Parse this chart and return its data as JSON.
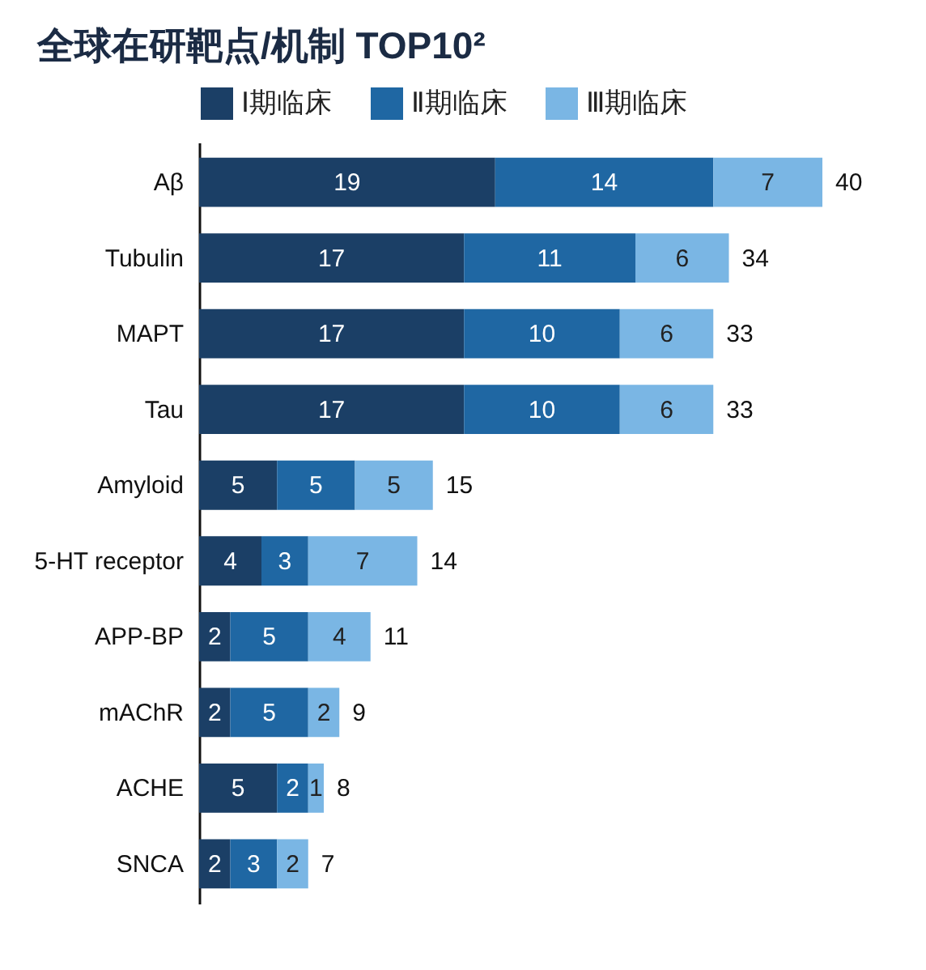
{
  "chart_data": {
    "type": "bar",
    "orientation": "horizontal",
    "stacked": true,
    "title": "全球在研靶点/机制 TOP10²",
    "categories": [
      "Aβ",
      "Tubulin",
      "MAPT",
      "Tau",
      "Amyloid",
      "5-HT receptor",
      "APP-BP",
      "mAChR",
      "ACHE",
      "SNCA"
    ],
    "series": [
      {
        "name": "Ⅰ期临床",
        "color": "#1b3f66",
        "values": [
          19,
          17,
          17,
          17,
          5,
          4,
          2,
          2,
          5,
          2
        ]
      },
      {
        "name": "Ⅱ期临床",
        "color": "#1f67a3",
        "values": [
          14,
          11,
          10,
          10,
          5,
          3,
          5,
          5,
          2,
          3
        ]
      },
      {
        "name": "Ⅲ期临床",
        "color": "#7ab6e4",
        "values": [
          7,
          6,
          6,
          6,
          5,
          7,
          4,
          2,
          1,
          2
        ]
      }
    ],
    "data_labels": true,
    "totals": [
      "40",
      "34",
      "33",
      "33",
      "15",
      "14",
      "11",
      "9",
      "8",
      "7"
    ],
    "legend": "top",
    "grid": false
  }
}
